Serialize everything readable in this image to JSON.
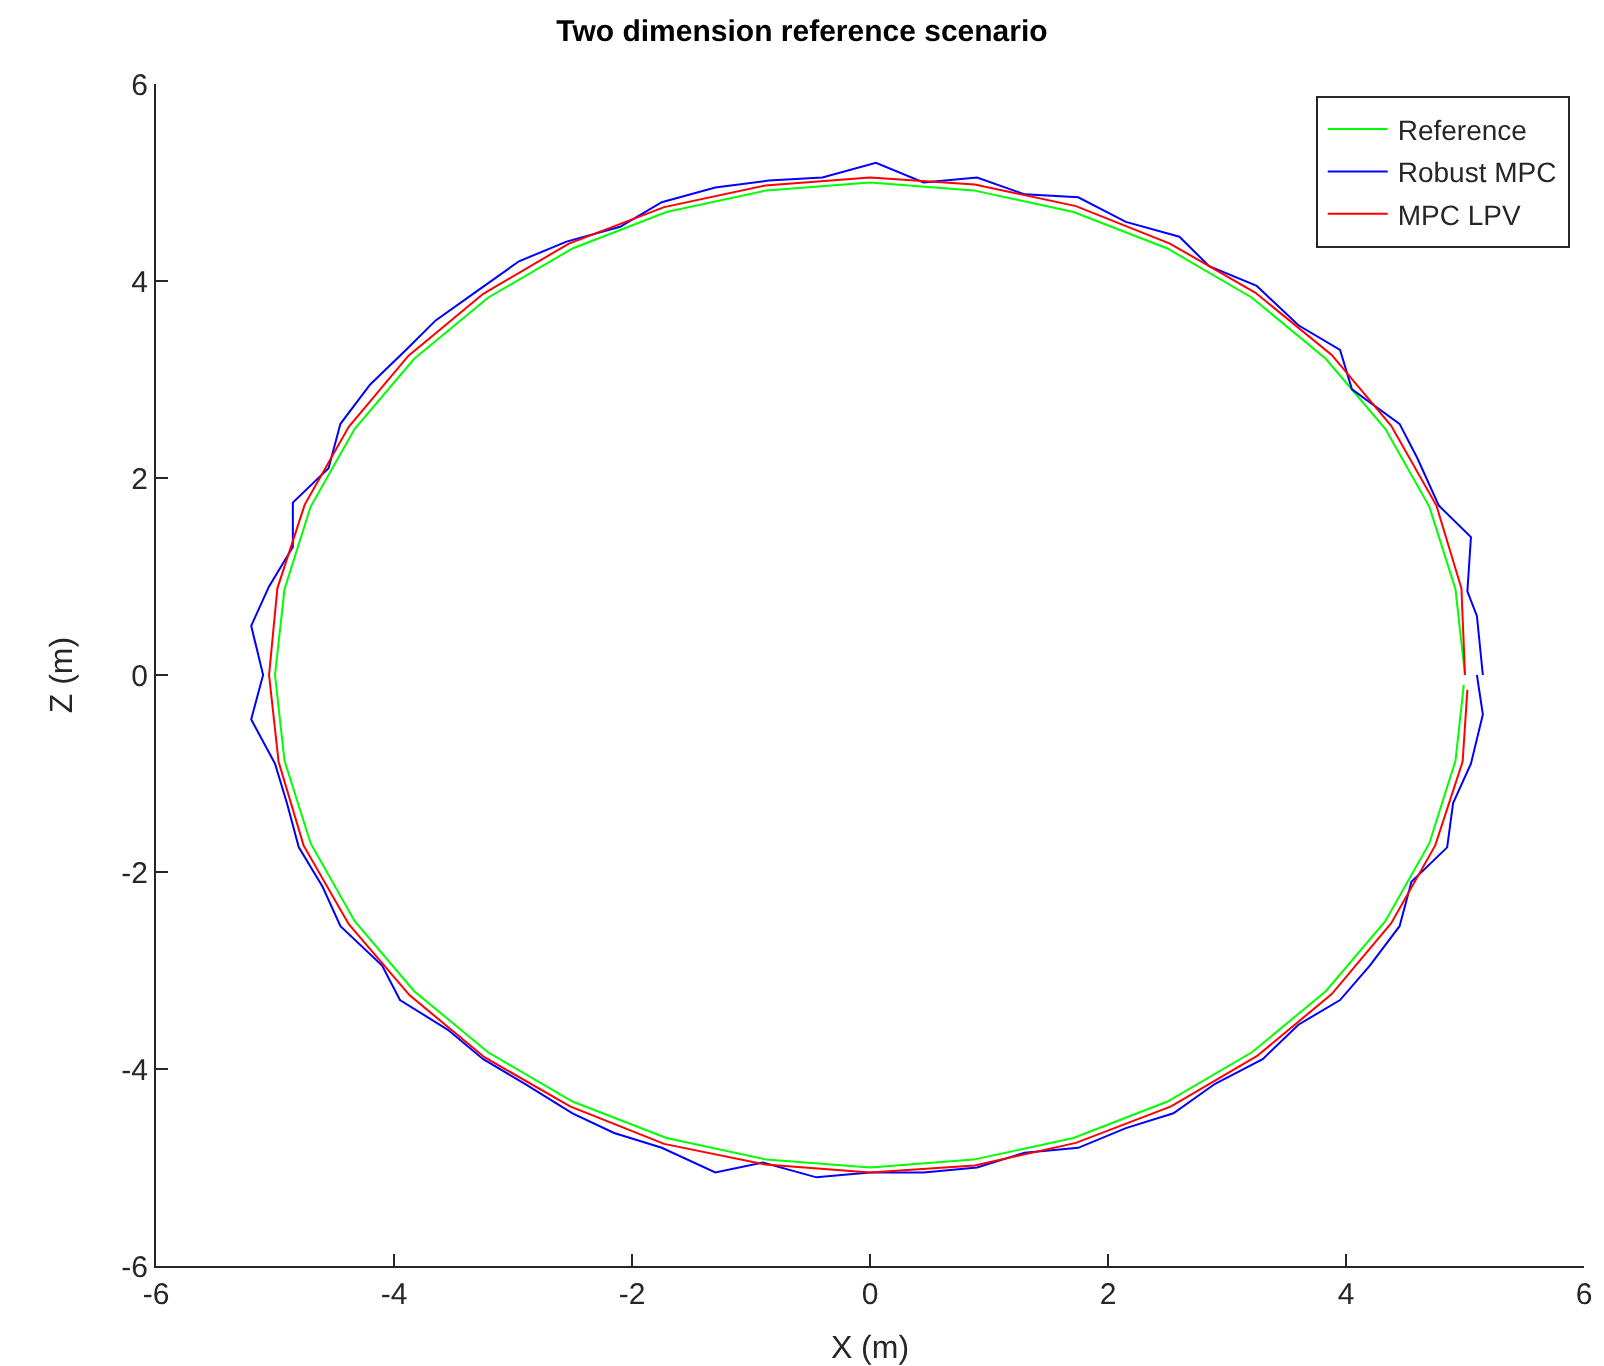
{
  "chart_data": {
    "type": "line",
    "title": "Two dimension reference scenario",
    "xlabel": "X (m)",
    "ylabel": "Z (m)",
    "xlim": [
      -6,
      6
    ],
    "ylim": [
      -6,
      6
    ],
    "xticks": [
      -6,
      -4,
      -2,
      0,
      2,
      4,
      6
    ],
    "yticks": [
      -6,
      -4,
      -2,
      0,
      2,
      4,
      6
    ],
    "grid": false,
    "legend": "top right",
    "marker": "none",
    "line_style": "solid",
    "series": [
      {
        "name": "Reference",
        "color": "#00ff00",
        "x": [
          5,
          4.92,
          4.7,
          4.33,
          3.83,
          3.21,
          2.5,
          1.71,
          0.87,
          0,
          -0.87,
          -1.71,
          -2.5,
          -3.21,
          -3.83,
          -4.33,
          -4.7,
          -4.92,
          -5,
          -4.92,
          -4.7,
          -4.33,
          -3.83,
          -3.21,
          -2.5,
          -1.71,
          -0.87,
          0,
          0.87,
          1.71,
          2.5,
          3.21,
          3.83,
          4.33,
          4.7,
          4.92,
          4.99
        ],
        "values": [
          0,
          0.87,
          1.71,
          2.5,
          3.21,
          3.83,
          4.33,
          4.7,
          4.92,
          5,
          4.92,
          4.7,
          4.33,
          3.83,
          3.21,
          2.5,
          1.71,
          0.87,
          0,
          -0.87,
          -1.71,
          -2.5,
          -3.21,
          -3.83,
          -4.33,
          -4.7,
          -4.92,
          -5,
          -4.92,
          -4.7,
          -4.33,
          -3.83,
          -3.21,
          -2.5,
          -1.71,
          -0.87,
          -0.1
        ]
      },
      {
        "name": "Robust MPC",
        "color": "#0000ff",
        "x": [
          5.15,
          5.1,
          5.02,
          5.05,
          4.78,
          4.6,
          4.45,
          4.05,
          3.95,
          3.6,
          3.25,
          2.85,
          2.6,
          2.15,
          1.75,
          1.3,
          0.9,
          0.45,
          0.05,
          -0.4,
          -0.85,
          -1.3,
          -1.75,
          -2.1,
          -2.55,
          -2.95,
          -3.3,
          -3.65,
          -3.9,
          -4.2,
          -4.45,
          -4.55,
          -4.85,
          -4.85,
          -5.05,
          -5.2,
          -5.1,
          -5.2,
          -5.0,
          -4.9,
          -4.8,
          -4.6,
          -4.45,
          -4.1,
          -3.95,
          -3.55,
          -3.25,
          -2.9,
          -2.5,
          -2.15,
          -1.75,
          -1.3,
          -0.9,
          -0.45,
          0,
          0.45,
          0.9,
          1.3,
          1.75,
          2.15,
          2.55,
          2.9,
          3.3,
          3.6,
          3.95,
          4.2,
          4.45,
          4.55,
          4.85,
          4.9,
          5.05,
          5.15,
          5.1
        ],
        "values": [
          0,
          0.6,
          0.85,
          1.4,
          1.72,
          2.2,
          2.55,
          2.9,
          3.3,
          3.55,
          3.95,
          4.15,
          4.45,
          4.6,
          4.85,
          4.88,
          5.05,
          5.0,
          5.2,
          5.05,
          5.02,
          4.95,
          4.8,
          4.55,
          4.4,
          4.2,
          3.9,
          3.6,
          3.3,
          2.95,
          2.55,
          2.1,
          1.75,
          1.3,
          0.9,
          0.5,
          0,
          -0.45,
          -0.9,
          -1.3,
          -1.75,
          -2.15,
          -2.55,
          -2.95,
          -3.3,
          -3.6,
          -3.9,
          -4.15,
          -4.45,
          -4.65,
          -4.8,
          -5.05,
          -4.95,
          -5.1,
          -5.05,
          -5.05,
          -5.0,
          -4.85,
          -4.8,
          -4.6,
          -4.45,
          -4.15,
          -3.9,
          -3.55,
          -3.3,
          -2.95,
          -2.55,
          -2.1,
          -1.75,
          -1.3,
          -0.9,
          -0.4,
          0
        ]
      },
      {
        "name": "MPC LPV",
        "color": "#ff0000",
        "x": [
          5,
          4.97,
          4.76,
          4.38,
          3.88,
          3.24,
          2.52,
          1.73,
          0.88,
          0,
          -0.88,
          -1.73,
          -2.53,
          -3.25,
          -3.88,
          -4.38,
          -4.75,
          -4.98,
          -5.05,
          -4.97,
          -4.76,
          -4.38,
          -3.87,
          -3.24,
          -2.52,
          -1.73,
          -0.88,
          0,
          0.88,
          1.73,
          2.53,
          3.25,
          3.88,
          4.38,
          4.75,
          4.98,
          5.02
        ],
        "values": [
          0,
          0.88,
          1.72,
          2.53,
          3.25,
          3.88,
          4.38,
          4.76,
          4.98,
          5.05,
          4.97,
          4.75,
          4.38,
          3.87,
          3.24,
          2.52,
          1.73,
          0.88,
          0,
          -0.88,
          -1.73,
          -2.53,
          -3.25,
          -3.88,
          -4.38,
          -4.76,
          -4.97,
          -5.05,
          -4.98,
          -4.75,
          -4.38,
          -3.87,
          -3.24,
          -2.52,
          -1.73,
          -0.88,
          -0.15
        ]
      }
    ]
  }
}
